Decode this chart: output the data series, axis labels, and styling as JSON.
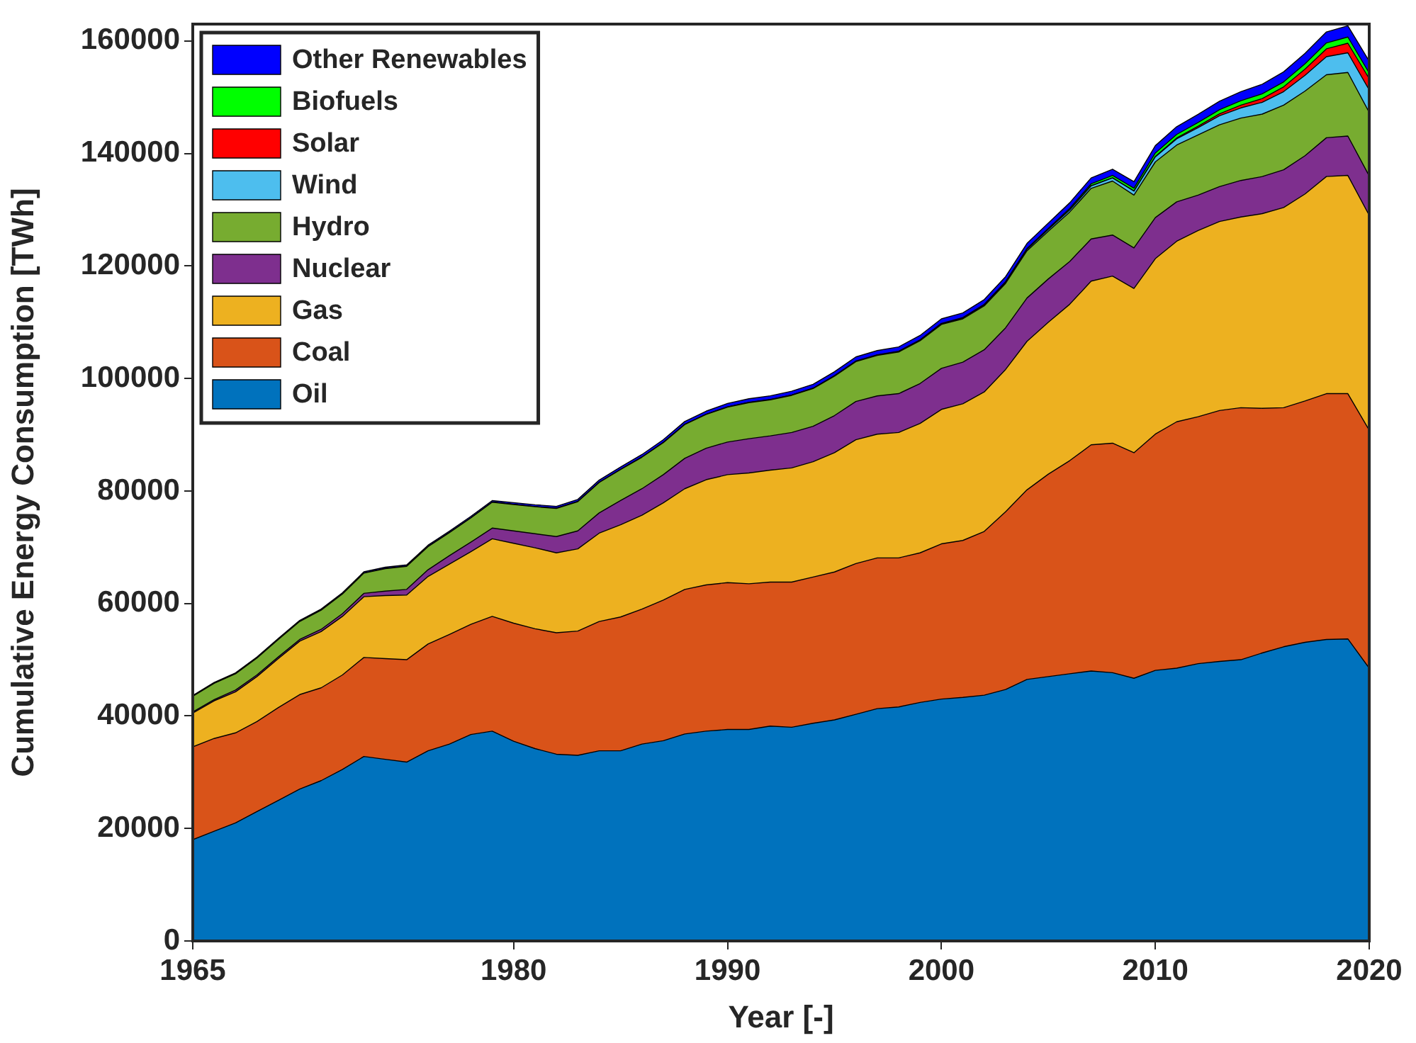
{
  "chart_data": {
    "type": "area",
    "stacked": true,
    "xlabel": "Year [-]",
    "ylabel": "Cumulative Energy Consumption [TWh]",
    "x": [
      1965,
      1966,
      1967,
      1968,
      1969,
      1970,
      1971,
      1972,
      1973,
      1974,
      1975,
      1976,
      1977,
      1978,
      1979,
      1980,
      1981,
      1982,
      1983,
      1984,
      1985,
      1986,
      1987,
      1988,
      1989,
      1990,
      1991,
      1992,
      1993,
      1994,
      1995,
      1996,
      1997,
      1998,
      1999,
      2000,
      2001,
      2002,
      2003,
      2004,
      2005,
      2006,
      2007,
      2008,
      2009,
      2010,
      2011,
      2012,
      2013,
      2014,
      2015,
      2016,
      2017,
      2018,
      2019,
      2020
    ],
    "xlim": [
      1965,
      2020
    ],
    "xticks": [
      1965,
      1980,
      1990,
      2000,
      2010,
      2020
    ],
    "ylim": [
      0,
      163000
    ],
    "yticks": [
      0,
      20000,
      40000,
      60000,
      80000,
      100000,
      120000,
      140000,
      160000
    ],
    "grid": false,
    "legend": "top left",
    "series": [
      {
        "name": "Oil",
        "color": "#0072bd",
        "values": [
          18000,
          19500,
          21000,
          23000,
          25000,
          27000,
          28500,
          30500,
          32800,
          32300,
          31800,
          33800,
          35000,
          36700,
          37300,
          35500,
          34200,
          33200,
          33000,
          33800,
          33800,
          35000,
          35600,
          36800,
          37300,
          37600,
          37600,
          38200,
          38000,
          38700,
          39300,
          40300,
          41300,
          41600,
          42400,
          43000,
          43300,
          43700,
          44700,
          46500,
          47000,
          47500,
          48000,
          47700,
          46700,
          48100,
          48500,
          49300,
          49700,
          50000,
          51200,
          52300,
          53100,
          53600,
          53700,
          48500
        ]
      },
      {
        "name": "Coal",
        "color": "#d95319",
        "values": [
          16500,
          16500,
          16000,
          16000,
          16500,
          16800,
          16500,
          16800,
          17600,
          17900,
          18200,
          19000,
          19500,
          19600,
          20400,
          21000,
          21300,
          21600,
          22100,
          23000,
          23800,
          24000,
          25000,
          25700,
          26000,
          26100,
          25900,
          25600,
          25800,
          26000,
          26300,
          26800,
          26800,
          26500,
          26600,
          27600,
          27900,
          29100,
          31600,
          33700,
          36000,
          37900,
          40200,
          40800,
          40100,
          42000,
          43800,
          43900,
          44600,
          44800,
          43500,
          42500,
          42900,
          43700,
          43600,
          42300
        ]
      },
      {
        "name": "Gas",
        "color": "#edb120",
        "values": [
          6000,
          6700,
          7300,
          8000,
          8700,
          9500,
          10000,
          10400,
          10800,
          11200,
          11500,
          12000,
          12500,
          12900,
          13800,
          14200,
          14400,
          14200,
          14600,
          15700,
          16400,
          16700,
          17300,
          17900,
          18700,
          19200,
          19700,
          19900,
          20300,
          20500,
          21200,
          22000,
          22000,
          22300,
          23000,
          23900,
          24300,
          24800,
          25300,
          26400,
          27000,
          27800,
          29100,
          29700,
          29200,
          31200,
          32100,
          33100,
          33600,
          33900,
          34600,
          35600,
          36800,
          38600,
          38800,
          38200
        ]
      },
      {
        "name": "Nuclear",
        "color": "#7e2f8e",
        "values": [
          200,
          200,
          300,
          300,
          300,
          300,
          400,
          500,
          600,
          800,
          1000,
          1200,
          1500,
          1700,
          1900,
          2200,
          2500,
          2900,
          3200,
          3600,
          4300,
          4700,
          5000,
          5400,
          5600,
          5800,
          6100,
          6100,
          6300,
          6300,
          6600,
          6800,
          6800,
          6900,
          7100,
          7300,
          7400,
          7500,
          7400,
          7700,
          7700,
          7600,
          7500,
          7300,
          7200,
          7300,
          7000,
          6300,
          6200,
          6500,
          6600,
          6700,
          6800,
          6900,
          7000,
          7000
        ]
      },
      {
        "name": "Hydro",
        "color": "#77ac30",
        "values": [
          2800,
          2900,
          2900,
          3000,
          3100,
          3200,
          3400,
          3500,
          3600,
          4000,
          4100,
          4100,
          4100,
          4300,
          4600,
          4700,
          4800,
          5000,
          5200,
          5400,
          5500,
          5600,
          5700,
          6000,
          6000,
          6200,
          6400,
          6400,
          6600,
          6700,
          7000,
          7100,
          7200,
          7400,
          7600,
          7800,
          7700,
          7800,
          7900,
          8400,
          8500,
          8800,
          9000,
          9600,
          9400,
          9900,
          10100,
          10700,
          11000,
          11100,
          11100,
          11500,
          11500,
          11200,
          11300,
          11300
        ]
      },
      {
        "name": "Wind",
        "color": "#4dbeee",
        "values": [
          0,
          0,
          0,
          0,
          0,
          0,
          0,
          0,
          0,
          0,
          0,
          0,
          0,
          0,
          0,
          0,
          0,
          0,
          0,
          0,
          0,
          0,
          0,
          0,
          0,
          10,
          10,
          10,
          20,
          20,
          30,
          30,
          40,
          60,
          70,
          100,
          120,
          150,
          180,
          230,
          300,
          370,
          450,
          550,
          700,
          900,
          1100,
          1300,
          1600,
          1800,
          2100,
          2400,
          2800,
          3200,
          3500,
          4000
        ]
      },
      {
        "name": "Solar",
        "color": "#ff0000",
        "values": [
          0,
          0,
          0,
          0,
          0,
          0,
          0,
          0,
          0,
          0,
          0,
          0,
          0,
          0,
          0,
          0,
          0,
          0,
          0,
          0,
          0,
          0,
          0,
          0,
          0,
          0,
          0,
          0,
          0,
          0,
          0,
          0,
          0,
          0,
          0,
          0,
          0,
          0,
          0,
          0,
          0,
          10,
          20,
          30,
          50,
          80,
          160,
          250,
          350,
          500,
          650,
          850,
          1100,
          1400,
          1700,
          2000
        ]
      },
      {
        "name": "Biofuels",
        "color": "#00ff00",
        "values": [
          0,
          0,
          0,
          0,
          0,
          0,
          0,
          0,
          0,
          0,
          0,
          0,
          0,
          0,
          0,
          20,
          25,
          30,
          35,
          40,
          40,
          40,
          45,
          45,
          50,
          55,
          60,
          60,
          60,
          65,
          70,
          75,
          80,
          85,
          90,
          100,
          110,
          120,
          140,
          160,
          200,
          260,
          330,
          420,
          480,
          600,
          620,
          650,
          720,
          780,
          850,
          880,
          950,
          1050,
          1100,
          1000
        ]
      },
      {
        "name": "Other Renewables",
        "color": "#0000ff",
        "values": [
          150,
          160,
          170,
          180,
          190,
          200,
          210,
          220,
          230,
          240,
          250,
          260,
          270,
          280,
          290,
          300,
          320,
          340,
          360,
          390,
          420,
          440,
          470,
          500,
          540,
          600,
          620,
          640,
          660,
          680,
          700,
          720,
          740,
          760,
          780,
          800,
          820,
          850,
          880,
          920,
          950,
          1000,
          1050,
          1100,
          1150,
          1300,
          1380,
          1450,
          1520,
          1600,
          1700,
          1780,
          1850,
          1950,
          2000,
          2100
        ]
      }
    ]
  }
}
